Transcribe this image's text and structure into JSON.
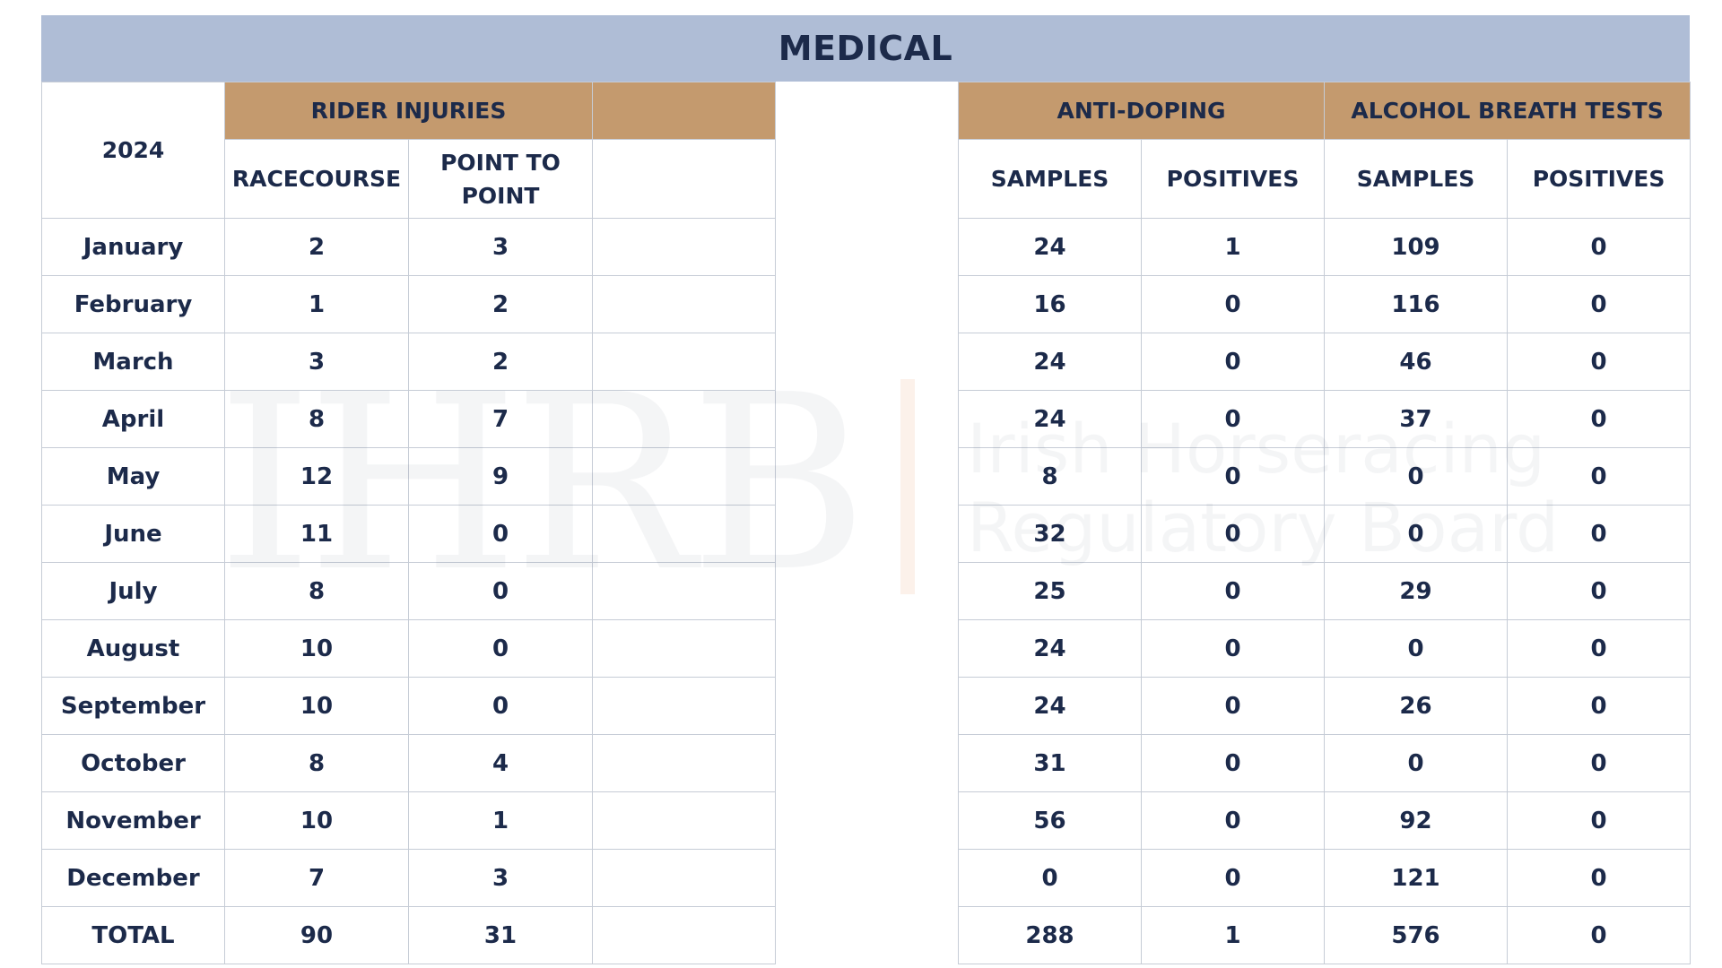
{
  "title": "MEDICAL",
  "watermark": {
    "logo": "IHRB",
    "line1": "Irish Horseracing",
    "line2": "Regulatory Board"
  },
  "left_table": {
    "year_label": "2024",
    "group_header": "RIDER INJURIES",
    "columns": [
      "RACECOURSE",
      "POINT TO POINT"
    ],
    "rows": [
      {
        "month": "January",
        "values": [
          "2",
          "3"
        ]
      },
      {
        "month": "February",
        "values": [
          "1",
          "2"
        ]
      },
      {
        "month": "March",
        "values": [
          "3",
          "2"
        ]
      },
      {
        "month": "April",
        "values": [
          "8",
          "7"
        ]
      },
      {
        "month": "May",
        "values": [
          "12",
          "9"
        ]
      },
      {
        "month": "June",
        "values": [
          "11",
          "0"
        ]
      },
      {
        "month": "July",
        "values": [
          "8",
          "0"
        ]
      },
      {
        "month": "August",
        "values": [
          "10",
          "0"
        ]
      },
      {
        "month": "September",
        "values": [
          "10",
          "0"
        ]
      },
      {
        "month": "October",
        "values": [
          "8",
          "4"
        ]
      },
      {
        "month": "November",
        "values": [
          "10",
          "1"
        ]
      },
      {
        "month": "December",
        "values": [
          "7",
          "3"
        ]
      }
    ],
    "total": {
      "label": "TOTAL",
      "values": [
        "90",
        "31"
      ]
    }
  },
  "right_table": {
    "groups": [
      "ANTI-DOPING",
      "ALCOHOL BREATH TESTS"
    ],
    "columns": [
      "SAMPLES",
      "POSITIVES",
      "SAMPLES",
      "POSITIVES"
    ],
    "rows": [
      [
        "24",
        "1",
        "109",
        "0"
      ],
      [
        "16",
        "0",
        "116",
        "0"
      ],
      [
        "24",
        "0",
        "46",
        "0"
      ],
      [
        "24",
        "0",
        "37",
        "0"
      ],
      [
        "8",
        "0",
        "0",
        "0"
      ],
      [
        "32",
        "0",
        "0",
        "0"
      ],
      [
        "25",
        "0",
        "29",
        "0"
      ],
      [
        "24",
        "0",
        "0",
        "0"
      ],
      [
        "24",
        "0",
        "26",
        "0"
      ],
      [
        "31",
        "0",
        "0",
        "0"
      ],
      [
        "56",
        "0",
        "92",
        "0"
      ],
      [
        "0",
        "0",
        "121",
        "0"
      ]
    ],
    "total": [
      "288",
      "1",
      "576",
      "0"
    ]
  },
  "colors": {
    "title_bg": "#afbdd6",
    "group_header_bg": "#c49a6e",
    "text": "#1c2a4a",
    "grid": "#c6ccd6"
  }
}
